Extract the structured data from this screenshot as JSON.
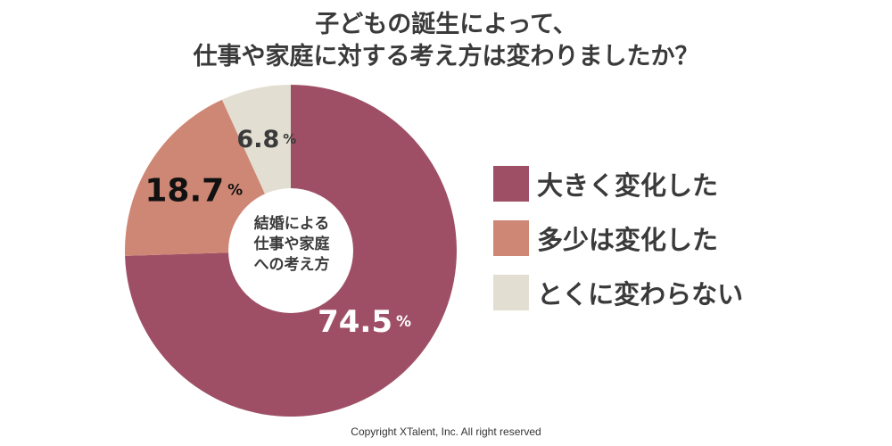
{
  "title": {
    "line1": "子どもの誕生によって、",
    "line2": "仕事や家庭に対する考え方は変わりましたか？"
  },
  "center_label": {
    "line1": "結婚による",
    "line2": "仕事や家庭",
    "line3": "への考え方"
  },
  "legend": [
    {
      "label": "大きく変化した",
      "color": "#9e4f66"
    },
    {
      "label": "多少は変化した",
      "color": "#cf8775"
    },
    {
      "label": "とくに変わらない",
      "color": "#e3ded2"
    }
  ],
  "chart_data": {
    "type": "pie",
    "style": "donut",
    "title": "子どもの誕生によって、仕事や家庭に対する考え方は変わりましたか？",
    "unit": "%",
    "categories": [
      "大きく変化した",
      "多少は変化した",
      "とくに変わらない"
    ],
    "values": [
      74.5,
      18.7,
      6.8
    ],
    "labels": [
      "74.5",
      "18.7",
      "6.8"
    ],
    "colors": [
      "#9e4f66",
      "#cf8775",
      "#e3ded2"
    ],
    "label_colors": [
      "#ffffff",
      "#111111",
      "#3a3a3a"
    ],
    "start_angle": "12 o'clock",
    "direction": "clockwise",
    "legend_position": "right"
  },
  "footer": {
    "copyright": "Copyright XTalent, Inc. All right reserved"
  }
}
